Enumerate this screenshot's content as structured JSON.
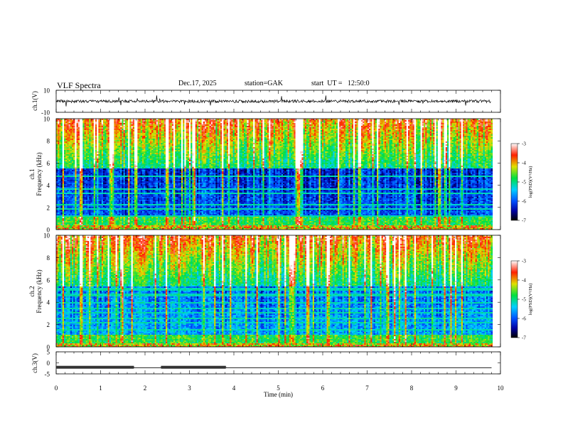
{
  "header": {
    "title": "VLF Spectra",
    "date": "Dec.17, 2025",
    "station": "station=GAK",
    "start": "start  UT =   12:50:0"
  },
  "chart_data": [
    {
      "type": "line",
      "panel": "ch1-waveform",
      "ylabel": "ch.1(V)",
      "ylim": [
        -10,
        10
      ],
      "y_ticks": [
        "10",
        "-10"
      ],
      "baseline": 0
    },
    {
      "type": "heatmap",
      "panel": "ch1-spectrogram",
      "ylabel_line1": "ch.1",
      "ylabel_line2": "Frequency (kHz)",
      "ylim": [
        0,
        10
      ],
      "y_ticks": [
        "0",
        "2",
        "4",
        "6",
        "8",
        "10"
      ],
      "colorbar": {
        "label": "log(PSD)(V²/Hz)",
        "range": [
          -7,
          -3
        ],
        "ticks": [
          "-3",
          "-4",
          "-5",
          "-6",
          "-7"
        ]
      }
    },
    {
      "type": "heatmap",
      "panel": "ch2-spectrogram",
      "ylabel_line1": "ch.2",
      "ylabel_line2": "Frequency (kHz)",
      "ylim": [
        0,
        10
      ],
      "y_ticks": [
        "0",
        "2",
        "4",
        "6",
        "8",
        "10"
      ],
      "colorbar": {
        "label": "log(PSD)(V²/Hz)",
        "range": [
          -7,
          -3
        ],
        "ticks": [
          "-3",
          "-4",
          "-5",
          "-6",
          "-7"
        ]
      }
    },
    {
      "type": "line",
      "panel": "ch3-waveform",
      "ylabel": "ch.3(V)",
      "ylim": [
        -5,
        5
      ],
      "y_ticks": [
        "5",
        "0",
        "-5"
      ],
      "x": [
        0,
        1.75,
        1.76,
        2.35,
        2.36,
        3.82,
        3.83,
        9.8
      ],
      "y": [
        -2.0,
        -2.0,
        -2.2,
        -2.2,
        -2.0,
        -2.0,
        -2.2,
        -2.2
      ]
    }
  ],
  "xaxis": {
    "label": "Time (min)",
    "range": [
      0,
      10
    ],
    "ticks": [
      "0",
      "1",
      "2",
      "3",
      "4",
      "5",
      "6",
      "7",
      "8",
      "9",
      "10"
    ]
  }
}
